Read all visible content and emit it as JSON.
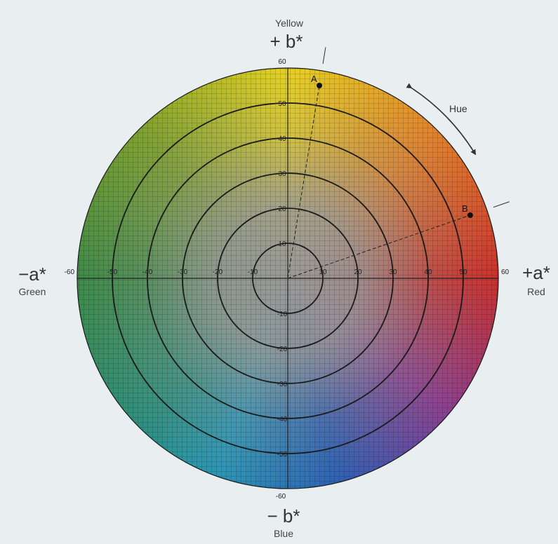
{
  "diagram": {
    "labels": {
      "top_word": "Yellow",
      "top_axis": "+ b*",
      "bottom_axis": "− b*",
      "bottom_word": "Blue",
      "left_axis": "−a*",
      "left_word": "Green",
      "right_axis": "+a*",
      "right_word": "Red",
      "hue": "Hue"
    },
    "scale": {
      "max": 60,
      "ring_radii": [
        10,
        20,
        30,
        40,
        50
      ]
    },
    "ticks": {
      "horizontal": [
        "-60",
        "-50",
        "-40",
        "-30",
        "-20",
        "-10",
        "10",
        "20",
        "30",
        "40",
        "50",
        "60"
      ],
      "horizontal_values": [
        -60,
        -50,
        -40,
        -30,
        -20,
        -10,
        10,
        20,
        30,
        40,
        50,
        60
      ],
      "vertical": [
        "60",
        "50",
        "40",
        "30",
        "20",
        "10",
        "-10",
        "-20",
        "-30",
        "-40",
        "-50",
        "-60"
      ],
      "vertical_values": [
        60,
        50,
        40,
        30,
        20,
        10,
        -10,
        -20,
        -30,
        -40,
        -50,
        -60
      ]
    },
    "points": [
      {
        "label": "A",
        "a": 9,
        "b": 55
      },
      {
        "label": "B",
        "a": 52,
        "b": 18
      }
    ],
    "colors": {
      "yellow": "#e6d222",
      "orange": "#e2832b",
      "red": "#c9302c",
      "magenta": "#8a3f8f",
      "blue": "#2f5fb3",
      "cyan": "#2b96b5",
      "green": "#3f8a47",
      "center_gray": "#9a9a98",
      "ring_line": "#1a1a1a",
      "background": "#e9eef1"
    }
  }
}
